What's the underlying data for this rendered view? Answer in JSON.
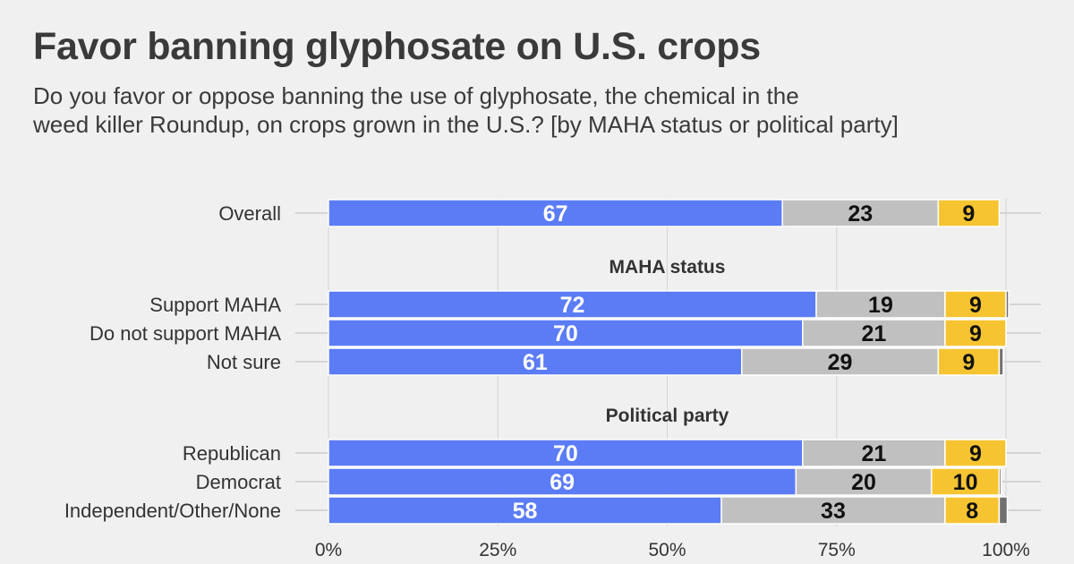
{
  "title": "Favor banning glyphosate on U.S. crops",
  "subtitle_lines": [
    "Do you favor or oppose banning the use of glyphosate, the chemical in the",
    "weed killer Roundup, on crops grown in the U.S.? [by MAHA status or political party]"
  ],
  "colors": {
    "favor": "#5b7cf5",
    "oppose": "#c0c0c0",
    "not_sure": "#f7c431",
    "other": "#707070",
    "background": "#f0f0f0",
    "grid": "#d4d4d4",
    "text": "#333333"
  },
  "chart_data": {
    "type": "bar",
    "orientation": "horizontal",
    "stacked": true,
    "xlim": [
      0,
      100
    ],
    "ticks": [
      "0%",
      "25%",
      "50%",
      "75%",
      "100%"
    ],
    "tick_values": [
      0,
      25,
      50,
      75,
      100
    ],
    "grid": true,
    "groups": [
      {
        "heading": "",
        "rows": [
          {
            "label": "Overall",
            "values": [
              67,
              23,
              9,
              0
            ]
          }
        ]
      },
      {
        "heading": "MAHA status",
        "rows": [
          {
            "label": "Support MAHA",
            "values": [
              72,
              19,
              9,
              0.4
            ]
          },
          {
            "label": "Do not support MAHA",
            "values": [
              70,
              21,
              9,
              0
            ]
          },
          {
            "label": "Not sure",
            "values": [
              61,
              29,
              9,
              0.6
            ]
          }
        ]
      },
      {
        "heading": "Political party",
        "rows": [
          {
            "label": "Republican",
            "values": [
              70,
              21,
              9,
              0
            ]
          },
          {
            "label": "Democrat",
            "values": [
              69,
              20,
              10,
              0.3
            ]
          },
          {
            "label": "Independent/Other/None",
            "values": [
              58,
              33,
              8,
              1.2
            ]
          }
        ]
      }
    ],
    "segment_label_colors": [
      "#ffffff",
      "#111111",
      "#111111",
      "#ffffff"
    ]
  }
}
